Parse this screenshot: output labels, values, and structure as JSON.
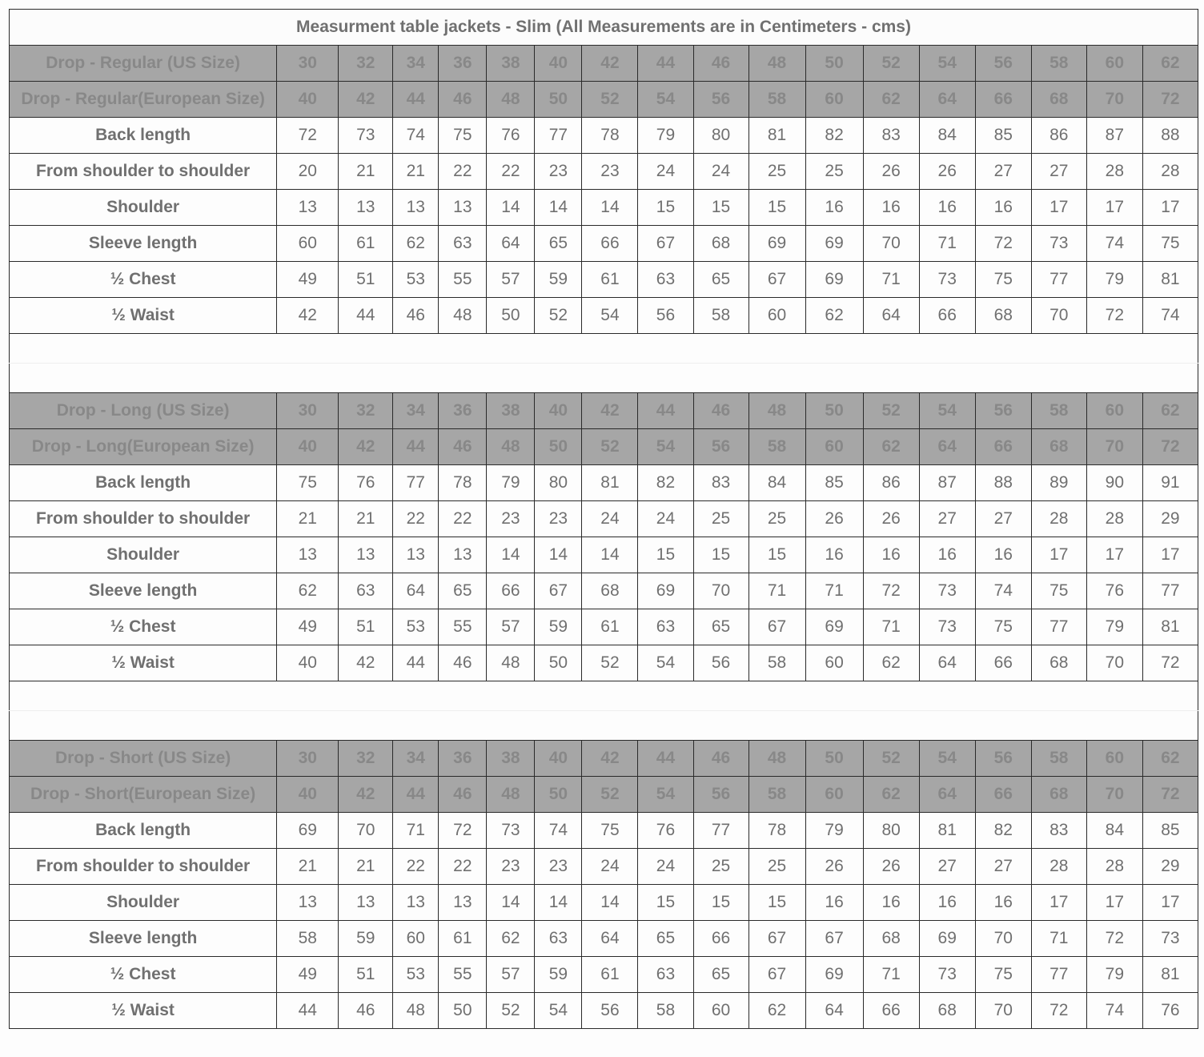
{
  "title": "Measurment table jackets - Slim (All Measurements are in Centimeters - cms)",
  "colors": {
    "header_bg": "#a6a6a6",
    "header_text": "#888888",
    "body_text": "#707070",
    "border": "#2a2a2a"
  },
  "sections": [
    {
      "us_label": "Drop - Regular (US Size)",
      "eu_label": "Drop - Regular(European Size)",
      "us_sizes": [
        "30",
        "32",
        "34",
        "36",
        "38",
        "40",
        "42",
        "44",
        "46",
        "48",
        "50",
        "52",
        "54",
        "56",
        "58",
        "60",
        "62"
      ],
      "eu_sizes": [
        "40",
        "42",
        "44",
        "46",
        "48",
        "50",
        "52",
        "54",
        "56",
        "58",
        "60",
        "62",
        "64",
        "66",
        "68",
        "70",
        "72"
      ],
      "rows": [
        {
          "label": "Back length",
          "values": [
            "72",
            "73",
            "74",
            "75",
            "76",
            "77",
            "78",
            "79",
            "80",
            "81",
            "82",
            "83",
            "84",
            "85",
            "86",
            "87",
            "88"
          ]
        },
        {
          "label": "From shoulder to shoulder",
          "values": [
            "20",
            "21",
            "21",
            "22",
            "22",
            "23",
            "23",
            "24",
            "24",
            "25",
            "25",
            "26",
            "26",
            "27",
            "27",
            "28",
            "28"
          ]
        },
        {
          "label": "Shoulder",
          "values": [
            "13",
            "13",
            "13",
            "13",
            "14",
            "14",
            "14",
            "15",
            "15",
            "15",
            "16",
            "16",
            "16",
            "16",
            "17",
            "17",
            "17"
          ]
        },
        {
          "label": "Sleeve length",
          "values": [
            "60",
            "61",
            "62",
            "63",
            "64",
            "65",
            "66",
            "67",
            "68",
            "69",
            "69",
            "70",
            "71",
            "72",
            "73",
            "74",
            "75"
          ]
        },
        {
          "label": "½ Chest",
          "values": [
            "49",
            "51",
            "53",
            "55",
            "57",
            "59",
            "61",
            "63",
            "65",
            "67",
            "69",
            "71",
            "73",
            "75",
            "77",
            "79",
            "81"
          ]
        },
        {
          "label": "½ Waist",
          "values": [
            "42",
            "44",
            "46",
            "48",
            "50",
            "52",
            "54",
            "56",
            "58",
            "60",
            "62",
            "64",
            "66",
            "68",
            "70",
            "72",
            "74"
          ]
        }
      ]
    },
    {
      "us_label": "Drop - Long (US Size)",
      "eu_label": "Drop - Long(European Size)",
      "us_sizes": [
        "30",
        "32",
        "34",
        "36",
        "38",
        "40",
        "42",
        "44",
        "46",
        "48",
        "50",
        "52",
        "54",
        "56",
        "58",
        "60",
        "62"
      ],
      "eu_sizes": [
        "40",
        "42",
        "44",
        "46",
        "48",
        "50",
        "52",
        "54",
        "56",
        "58",
        "60",
        "62",
        "64",
        "66",
        "68",
        "70",
        "72"
      ],
      "rows": [
        {
          "label": "Back length",
          "values": [
            "75",
            "76",
            "77",
            "78",
            "79",
            "80",
            "81",
            "82",
            "83",
            "84",
            "85",
            "86",
            "87",
            "88",
            "89",
            "90",
            "91"
          ]
        },
        {
          "label": "From shoulder to shoulder",
          "values": [
            "21",
            "21",
            "22",
            "22",
            "23",
            "23",
            "24",
            "24",
            "25",
            "25",
            "26",
            "26",
            "27",
            "27",
            "28",
            "28",
            "29"
          ]
        },
        {
          "label": "Shoulder",
          "values": [
            "13",
            "13",
            "13",
            "13",
            "14",
            "14",
            "14",
            "15",
            "15",
            "15",
            "16",
            "16",
            "16",
            "16",
            "17",
            "17",
            "17"
          ]
        },
        {
          "label": "Sleeve length",
          "values": [
            "62",
            "63",
            "64",
            "65",
            "66",
            "67",
            "68",
            "69",
            "70",
            "71",
            "71",
            "72",
            "73",
            "74",
            "75",
            "76",
            "77"
          ]
        },
        {
          "label": "½ Chest",
          "values": [
            "49",
            "51",
            "53",
            "55",
            "57",
            "59",
            "61",
            "63",
            "65",
            "67",
            "69",
            "71",
            "73",
            "75",
            "77",
            "79",
            "81"
          ]
        },
        {
          "label": "½ Waist",
          "values": [
            "40",
            "42",
            "44",
            "46",
            "48",
            "50",
            "52",
            "54",
            "56",
            "58",
            "60",
            "62",
            "64",
            "66",
            "68",
            "70",
            "72"
          ]
        }
      ]
    },
    {
      "us_label": "Drop - Short (US Size)",
      "eu_label": "Drop - Short(European Size)",
      "us_sizes": [
        "30",
        "32",
        "34",
        "36",
        "38",
        "40",
        "42",
        "44",
        "46",
        "48",
        "50",
        "52",
        "54",
        "56",
        "58",
        "60",
        "62"
      ],
      "eu_sizes": [
        "40",
        "42",
        "44",
        "46",
        "48",
        "50",
        "52",
        "54",
        "56",
        "58",
        "60",
        "62",
        "64",
        "66",
        "68",
        "70",
        "72"
      ],
      "rows": [
        {
          "label": "Back length",
          "values": [
            "69",
            "70",
            "71",
            "72",
            "73",
            "74",
            "75",
            "76",
            "77",
            "78",
            "79",
            "80",
            "81",
            "82",
            "83",
            "84",
            "85"
          ]
        },
        {
          "label": "From shoulder to shoulder",
          "values": [
            "21",
            "21",
            "22",
            "22",
            "23",
            "23",
            "24",
            "24",
            "25",
            "25",
            "26",
            "26",
            "27",
            "27",
            "28",
            "28",
            "29"
          ]
        },
        {
          "label": "Shoulder",
          "values": [
            "13",
            "13",
            "13",
            "13",
            "14",
            "14",
            "14",
            "15",
            "15",
            "15",
            "16",
            "16",
            "16",
            "16",
            "17",
            "17",
            "17"
          ]
        },
        {
          "label": "Sleeve length",
          "values": [
            "58",
            "59",
            "60",
            "61",
            "62",
            "63",
            "64",
            "65",
            "66",
            "67",
            "67",
            "68",
            "69",
            "70",
            "71",
            "72",
            "73"
          ]
        },
        {
          "label": "½ Chest",
          "values": [
            "49",
            "51",
            "53",
            "55",
            "57",
            "59",
            "61",
            "63",
            "65",
            "67",
            "69",
            "71",
            "73",
            "75",
            "77",
            "79",
            "81"
          ]
        },
        {
          "label": "½ Waist",
          "values": [
            "44",
            "46",
            "48",
            "50",
            "52",
            "54",
            "56",
            "58",
            "60",
            "62",
            "64",
            "66",
            "68",
            "70",
            "72",
            "74",
            "76"
          ]
        }
      ]
    }
  ]
}
